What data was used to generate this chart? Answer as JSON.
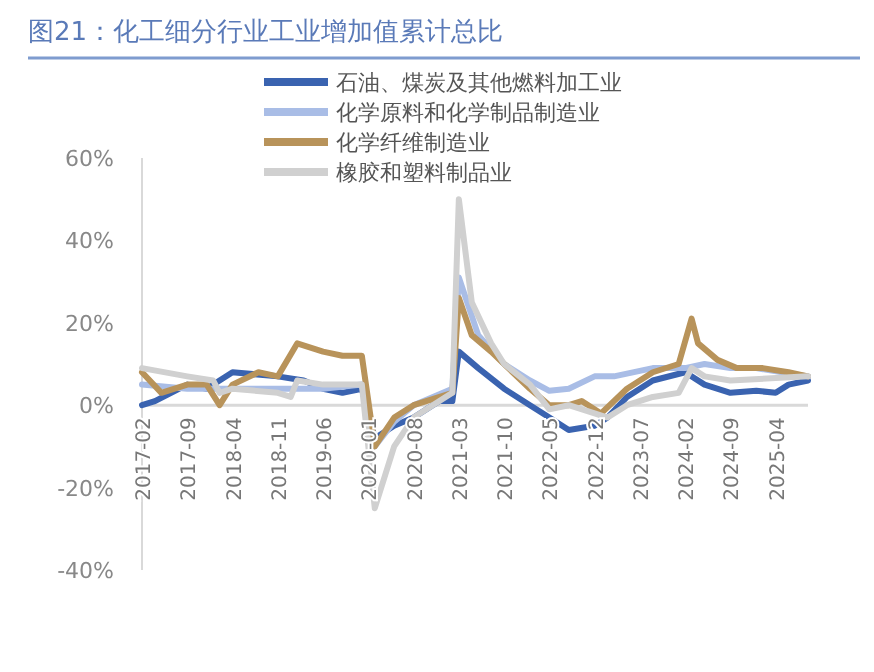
{
  "chart_data": {
    "type": "line",
    "title": "图21：化工细分行业工业增加值累计总比",
    "series": [
      {
        "name": "石油、煤炭及其他燃料加工业",
        "color": "#3a63b0",
        "x": [
          "2017-02",
          "2017-04",
          "2017-09",
          "2017-12",
          "2018-04",
          "2018-11",
          "2019-03",
          "2019-06",
          "2019-09",
          "2019-12",
          "2020-02",
          "2020-05",
          "2020-08",
          "2020-12",
          "2021-02",
          "2021-03",
          "2021-06",
          "2021-10",
          "2022-02",
          "2022-05",
          "2022-08",
          "2022-12",
          "2023-02",
          "2023-05",
          "2023-09",
          "2024-02",
          "2024-05",
          "2024-09",
          "2025-01",
          "2025-04",
          "2025-06",
          "2025-09"
        ],
        "values": [
          0,
          1,
          5,
          4,
          8,
          7,
          6,
          4,
          3,
          4,
          -8,
          -5,
          -3,
          1,
          1,
          13,
          9,
          4,
          0,
          -3,
          -6,
          -5,
          -3,
          2,
          6,
          8,
          5,
          3,
          3.5,
          3,
          5,
          6
        ]
      },
      {
        "name": "化学原料和化学制品制造业",
        "color": "#a9bde6",
        "x": [
          "2017-02",
          "2017-09",
          "2018-04",
          "2018-11",
          "2019-03",
          "2019-06",
          "2019-12",
          "2020-02",
          "2020-05",
          "2020-08",
          "2021-02",
          "2021-03",
          "2021-06",
          "2021-10",
          "2022-02",
          "2022-05",
          "2022-08",
          "2022-12",
          "2023-03",
          "2023-09",
          "2024-02",
          "2024-05",
          "2024-09",
          "2025-01",
          "2025-05",
          "2025-09"
        ],
        "values": [
          5,
          4,
          4,
          4,
          4,
          4,
          5,
          -10,
          -4,
          0,
          4,
          31,
          17,
          10,
          6,
          3.5,
          4,
          7,
          7,
          9,
          9,
          10,
          9,
          9,
          8,
          7
        ]
      },
      {
        "name": "化学纤维制造业",
        "color": "#b8935a",
        "x": [
          "2017-02",
          "2017-05",
          "2017-09",
          "2017-12",
          "2018-02",
          "2018-04",
          "2018-08",
          "2018-11",
          "2019-02",
          "2019-06",
          "2019-09",
          "2019-12",
          "2020-02",
          "2020-05",
          "2020-08",
          "2021-02",
          "2021-03",
          "2021-05",
          "2021-08",
          "2021-10",
          "2022-02",
          "2022-05",
          "2022-08",
          "2022-10",
          "2023-01",
          "2023-05",
          "2023-09",
          "2024-01",
          "2024-03",
          "2024-04",
          "2024-07",
          "2024-10",
          "2025-02",
          "2025-06",
          "2025-09"
        ],
        "values": [
          8,
          3,
          5,
          5,
          0,
          5,
          8,
          7,
          15,
          13,
          12,
          12,
          -10,
          -3,
          0,
          3,
          26,
          17,
          13,
          10,
          4,
          0,
          0,
          1,
          -2,
          4,
          8,
          10,
          21,
          15,
          11,
          9,
          9,
          8,
          7
        ]
      },
      {
        "name": "橡胶和塑料制品业",
        "color": "#d0d0d0",
        "x": [
          "2017-02",
          "2017-09",
          "2018-01",
          "2018-02",
          "2018-04",
          "2018-11",
          "2019-01",
          "2019-02",
          "2019-06",
          "2019-12",
          "2020-02",
          "2020-05",
          "2020-08",
          "2020-12",
          "2021-02",
          "2021-03",
          "2021-05",
          "2021-08",
          "2021-10",
          "2022-02",
          "2022-05",
          "2022-08",
          "2022-12",
          "2023-02",
          "2023-05",
          "2023-09",
          "2024-01",
          "2024-03",
          "2024-05",
          "2024-09",
          "2025-09"
        ],
        "values": [
          9,
          7,
          6,
          3,
          4,
          3,
          2,
          6,
          5,
          5,
          -25,
          -10,
          -3,
          1,
          3,
          50,
          25,
          15,
          10,
          5,
          -1,
          0,
          -2,
          -3,
          0,
          2,
          3,
          9,
          7,
          6,
          7
        ]
      }
    ],
    "xlim": [
      "2017-02",
      "2025-09"
    ],
    "xticks": [
      {
        "value": "2017-02",
        "label": "2017-02"
      },
      {
        "value": "2017-09",
        "label": "2017-09"
      },
      {
        "value": "2018-04",
        "label": "2018-04"
      },
      {
        "value": "2018-11",
        "label": "2018-11"
      },
      {
        "value": "2019-06",
        "label": "2019-06"
      },
      {
        "value": "2020-01",
        "label": "2020-01"
      },
      {
        "value": "2020-08",
        "label": "2020-08"
      },
      {
        "value": "2021-03",
        "label": "2021-03"
      },
      {
        "value": "2021-10",
        "label": "2021-10"
      },
      {
        "value": "2022-05",
        "label": "2022-05"
      },
      {
        "value": "2022-12",
        "label": "2022-12"
      },
      {
        "value": "2023-07",
        "label": "2023-07"
      },
      {
        "value": "2024-02",
        "label": "2024-02"
      },
      {
        "value": "2024-09",
        "label": "2024-09"
      },
      {
        "value": "2025-04",
        "label": "2025-04"
      }
    ],
    "ylim": [
      -40,
      60
    ],
    "yticks": [
      {
        "value": -40,
        "label": "-40%"
      },
      {
        "value": -20,
        "label": "-20%"
      },
      {
        "value": 0,
        "label": "0%"
      },
      {
        "value": 20,
        "label": "20%"
      },
      {
        "value": 40,
        "label": "40%"
      },
      {
        "value": 60,
        "label": "60%"
      }
    ],
    "grid": false,
    "legend": "top"
  }
}
